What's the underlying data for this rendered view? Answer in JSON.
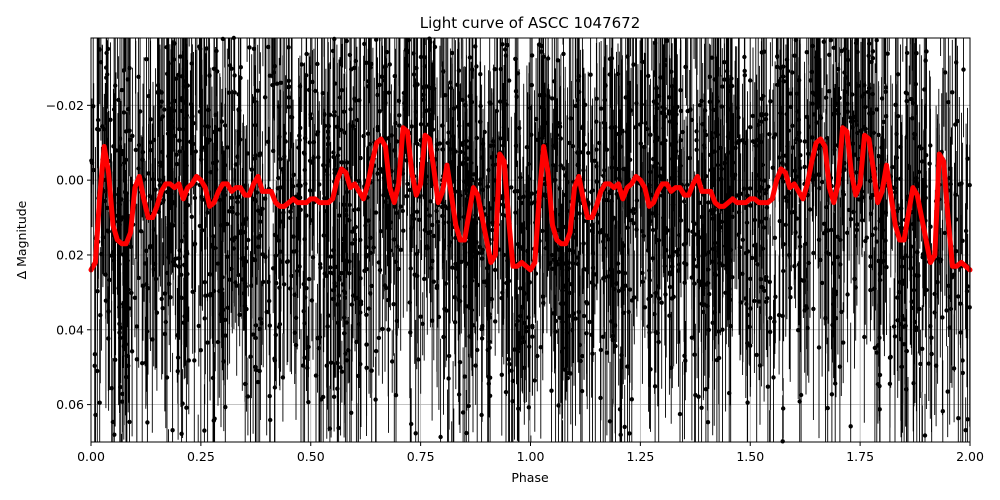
{
  "chart_data": {
    "type": "scatter",
    "title": "Light curve of ASCC 1047672",
    "xlabel": "Phase",
    "ylabel": "Δ Magnitude",
    "xlim": [
      0.0,
      2.0
    ],
    "ylim": [
      0.07,
      -0.038
    ],
    "y_inverted": true,
    "grid": true,
    "x_ticks": [
      "0.00",
      "0.25",
      "0.50",
      "0.75",
      "1.00",
      "1.25",
      "1.50",
      "1.75",
      "2.00"
    ],
    "x_tick_values": [
      0.0,
      0.25,
      0.5,
      0.75,
      1.0,
      1.25,
      1.5,
      1.75,
      2.0
    ],
    "y_ticks": [
      "−0.02",
      "0.00",
      "0.02",
      "0.04",
      "0.06"
    ],
    "y_tick_values": [
      -0.02,
      0.0,
      0.02,
      0.04,
      0.06
    ],
    "series": [
      {
        "kind": "scatter-errorbars",
        "color": "#000000",
        "description_points": "dense noisy observations with error bars spanning roughly -0.04 to 0.07 across all phases"
      },
      {
        "kind": "line",
        "color": "#ff0000",
        "x": [
          0.0,
          0.01,
          0.02,
          0.03,
          0.04,
          0.05,
          0.06,
          0.07,
          0.08,
          0.09,
          0.1,
          0.11,
          0.12,
          0.13,
          0.14,
          0.15,
          0.16,
          0.17,
          0.18,
          0.19,
          0.2,
          0.21,
          0.22,
          0.23,
          0.24,
          0.25,
          0.26,
          0.27,
          0.28,
          0.29,
          0.3,
          0.31,
          0.32,
          0.33,
          0.34,
          0.35,
          0.36,
          0.37,
          0.38,
          0.39,
          0.4,
          0.41,
          0.42,
          0.43,
          0.44,
          0.45,
          0.46,
          0.47,
          0.48,
          0.49,
          0.5,
          0.51,
          0.52,
          0.53,
          0.54,
          0.55,
          0.56,
          0.57,
          0.58,
          0.59,
          0.6,
          0.61,
          0.62,
          0.63,
          0.64,
          0.65,
          0.66,
          0.67,
          0.68,
          0.69,
          0.7,
          0.71,
          0.72,
          0.73,
          0.74,
          0.75,
          0.76,
          0.77,
          0.78,
          0.79,
          0.8,
          0.81,
          0.82,
          0.83,
          0.84,
          0.85,
          0.86,
          0.87,
          0.88,
          0.89,
          0.9,
          0.91,
          0.92,
          0.93,
          0.94,
          0.95,
          0.96,
          0.97,
          0.98,
          0.99,
          1.0
        ],
        "y": [
          0.024,
          0.022,
          0.004,
          -0.009,
          -0.002,
          0.012,
          0.016,
          0.017,
          0.017,
          0.014,
          0.002,
          -0.001,
          0.005,
          0.01,
          0.01,
          0.007,
          0.003,
          0.001,
          0.001,
          0.002,
          0.001,
          0.005,
          0.002,
          0.001,
          -0.001,
          0.0,
          0.002,
          0.007,
          0.006,
          0.003,
          0.001,
          0.001,
          0.003,
          0.002,
          0.002,
          0.004,
          0.004,
          0.001,
          -0.001,
          0.003,
          0.003,
          0.003,
          0.006,
          0.007,
          0.007,
          0.006,
          0.005,
          0.006,
          0.006,
          0.006,
          0.005,
          0.005,
          0.006,
          0.006,
          0.006,
          0.005,
          0.0,
          -0.003,
          -0.002,
          0.002,
          0.001,
          0.003,
          0.005,
          0.001,
          -0.005,
          -0.01,
          -0.011,
          -0.009,
          0.002,
          0.006,
          0.001,
          -0.014,
          -0.013,
          -0.002,
          0.004,
          0.001,
          -0.012,
          -0.011,
          -0.003,
          0.006,
          0.003,
          -0.004,
          0.004,
          0.012,
          0.016,
          0.016,
          0.009,
          0.002,
          0.004,
          0.01,
          0.016,
          0.022,
          0.02,
          -0.007,
          -0.005,
          0.01,
          0.023,
          0.023,
          0.022,
          0.023,
          0.024
        ]
      }
    ]
  }
}
